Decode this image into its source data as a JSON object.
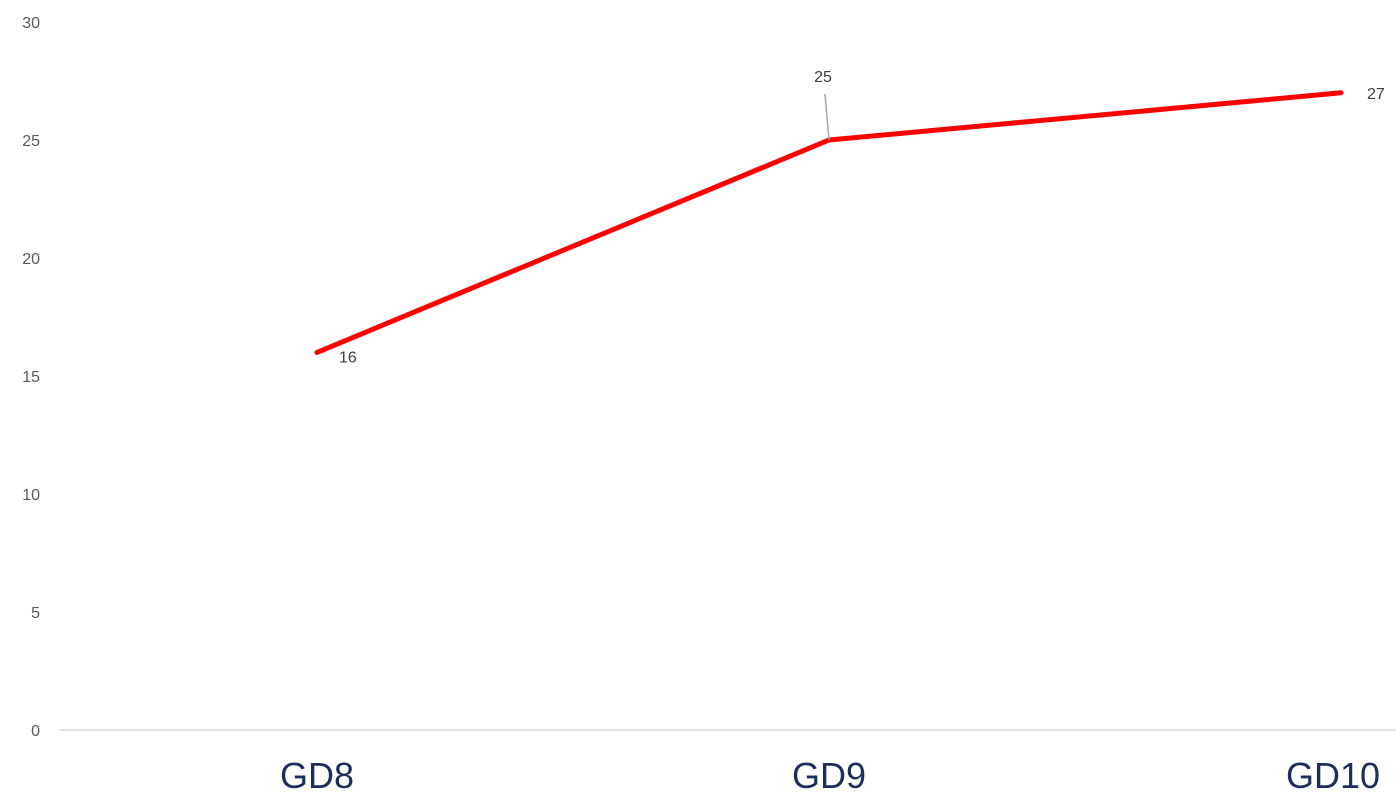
{
  "chart_data": {
    "type": "line",
    "categories": [
      "GD8",
      "GD9",
      "GD10"
    ],
    "series": [
      {
        "values": [
          16,
          25,
          27
        ],
        "color": "#ff0000"
      }
    ],
    "data_labels": [
      "16",
      "25",
      "27"
    ],
    "y_ticks": [
      "0",
      "5",
      "10",
      "15",
      "20",
      "25",
      "30"
    ],
    "ylim": [
      0,
      30
    ],
    "grid": false,
    "legend": "none",
    "title": "",
    "xlabel": "",
    "ylabel": "",
    "colors": {
      "line": "#ff0000",
      "axis": "#d9d9d9",
      "x_tick_text": "#1f2d5c",
      "y_tick_text": "#595959",
      "label_text": "#404040",
      "leader_line": "#a6a6a6"
    }
  }
}
